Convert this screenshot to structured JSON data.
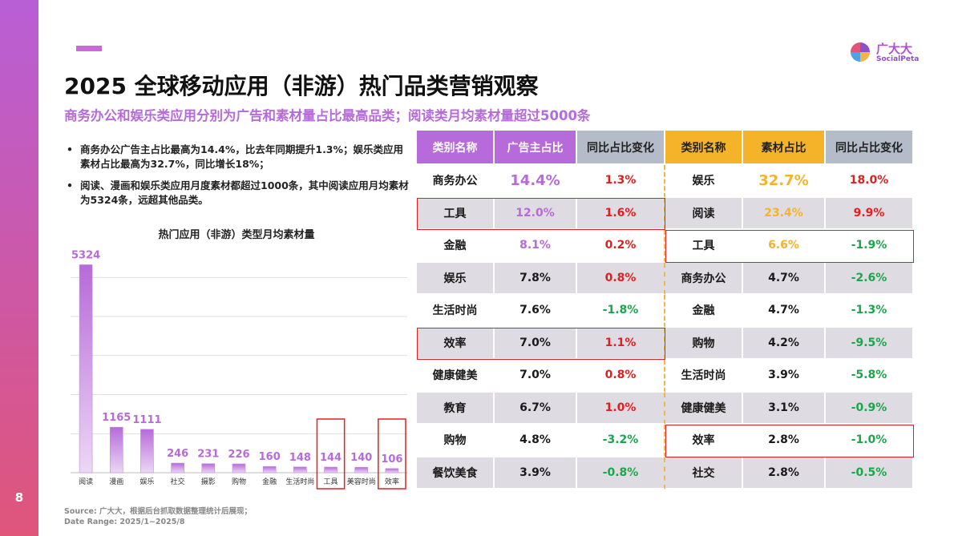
{
  "page_number": "8",
  "title": "2025 全球移动应用（非游）热门品类营销观察",
  "subtitle": "商务办公和娱乐类应用分别为广告和素材量占比最高品类；阅读类月均素材量超过5000条",
  "logo": {
    "cn": "广大大",
    "en": "SocialPeta"
  },
  "bullets": [
    "商务办公广告主占比最高为14.4%，比去年同期提升1.3%；娱乐类应用素材占比最高为32.7%，同比增长18%；",
    "阅读、漫画和娱乐类应用月度素材都超过1000条，其中阅读应用月均素材为5324条，远超其他品类。"
  ],
  "bullet_glyph": "•",
  "source": "Source:  广大大，根据后台抓取数据整理统计后展现；",
  "date_range": "Date Range:  2025/1~2025/8",
  "chart_data": {
    "type": "bar",
    "title": "热门应用（非游）类型月均素材量",
    "categories": [
      "阅读",
      "漫画",
      "娱乐",
      "社交",
      "摄影",
      "购物",
      "金融",
      "生活时尚",
      "工具",
      "美容时尚",
      "效率"
    ],
    "values": [
      5324,
      1165,
      1111,
      246,
      231,
      226,
      160,
      148,
      144,
      140,
      106
    ],
    "highlighted": [
      "工具",
      "效率"
    ],
    "ylim": [
      0,
      5600
    ],
    "grid": true,
    "colors": {
      "bar_top": "#b76ad9",
      "bar_bottom": "#ecd7f5",
      "label": "#b76ad9",
      "grid": "#d4d4d4",
      "highlight": "#e02020"
    }
  },
  "table": {
    "headers": {
      "left_category": "类别名称",
      "ad_share": "广告主占比",
      "left_change": "同比占比变化",
      "right_category": "类别名称",
      "creative_share": "素材占比",
      "right_change": "同比占比变化"
    },
    "left": [
      {
        "category": "商务办公",
        "value": "14.4%",
        "change": "1.3%"
      },
      {
        "category": "工具",
        "value": "12.0%",
        "change": "1.6%"
      },
      {
        "category": "金融",
        "value": "8.1%",
        "change": "0.2%"
      },
      {
        "category": "娱乐",
        "value": "7.8%",
        "change": "0.8%"
      },
      {
        "category": "生活时尚",
        "value": "7.6%",
        "change": "-1.8%"
      },
      {
        "category": "效率",
        "value": "7.0%",
        "change": "1.1%"
      },
      {
        "category": "健康健美",
        "value": "7.0%",
        "change": "0.8%"
      },
      {
        "category": "教育",
        "value": "6.7%",
        "change": "1.0%"
      },
      {
        "category": "购物",
        "value": "4.8%",
        "change": "-3.2%"
      },
      {
        "category": "餐饮美食",
        "value": "3.9%",
        "change": "-0.8%"
      }
    ],
    "right": [
      {
        "category": "娱乐",
        "value": "32.7%",
        "change": "18.0%"
      },
      {
        "category": "阅读",
        "value": "23.4%",
        "change": "9.9%"
      },
      {
        "category": "工具",
        "value": "6.6%",
        "change": "-1.9%"
      },
      {
        "category": "商务办公",
        "value": "4.7%",
        "change": "-2.6%"
      },
      {
        "category": "金融",
        "value": "4.7%",
        "change": "-1.3%"
      },
      {
        "category": "购物",
        "value": "4.2%",
        "change": "-9.5%"
      },
      {
        "category": "生活时尚",
        "value": "3.9%",
        "change": "-5.8%"
      },
      {
        "category": "健康健美",
        "value": "3.1%",
        "change": "-0.9%"
      },
      {
        "category": "效率",
        "value": "2.8%",
        "change": "-1.0%"
      },
      {
        "category": "社交",
        "value": "2.8%",
        "change": "-0.5%"
      }
    ],
    "highlighted_left": [
      "工具",
      "效率"
    ],
    "highlighted_right": [
      "工具",
      "效率"
    ]
  }
}
